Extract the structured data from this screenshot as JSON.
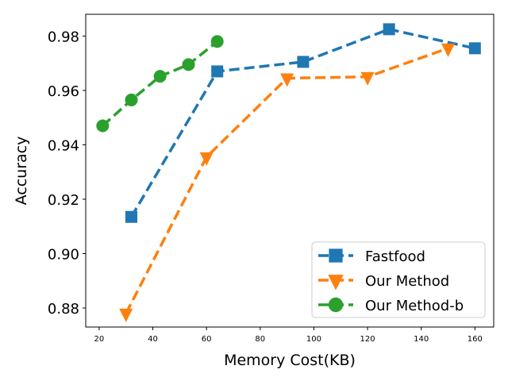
{
  "chart_data": {
    "type": "line",
    "title": "",
    "xlabel": "Memory Cost(KB)",
    "ylabel": "Accuracy",
    "xlim": [
      15,
      167
    ],
    "ylim": [
      0.873,
      0.988
    ],
    "xticks": [
      20,
      40,
      60,
      80,
      100,
      120,
      140,
      160
    ],
    "yticks": [
      0.88,
      0.9,
      0.92,
      0.94,
      0.96,
      0.98
    ],
    "ytick_labels": [
      "0.88",
      "0.90",
      "0.92",
      "0.94",
      "0.96",
      "0.98"
    ],
    "grid": false,
    "legend_position": "lower-right",
    "series": [
      {
        "name": "Fastfood",
        "color": "#1f77b4",
        "marker": "square",
        "linestyle": "dashed",
        "x": [
          32,
          64,
          96,
          128,
          160
        ],
        "y": [
          0.9135,
          0.967,
          0.9705,
          0.9825,
          0.9755
        ]
      },
      {
        "name": "Our Method",
        "color": "#ff7f0e",
        "marker": "triangle-down",
        "linestyle": "dashed",
        "x": [
          30,
          60,
          90,
          120,
          150
        ],
        "y": [
          0.878,
          0.9355,
          0.9645,
          0.965,
          0.9755
        ]
      },
      {
        "name": "Our Method-b",
        "color": "#2ca02c",
        "marker": "circle",
        "linestyle": "dashed",
        "x": [
          21.3,
          32,
          42.7,
          53.3,
          64
        ],
        "y": [
          0.947,
          0.9565,
          0.9652,
          0.9695,
          0.978
        ]
      }
    ]
  }
}
